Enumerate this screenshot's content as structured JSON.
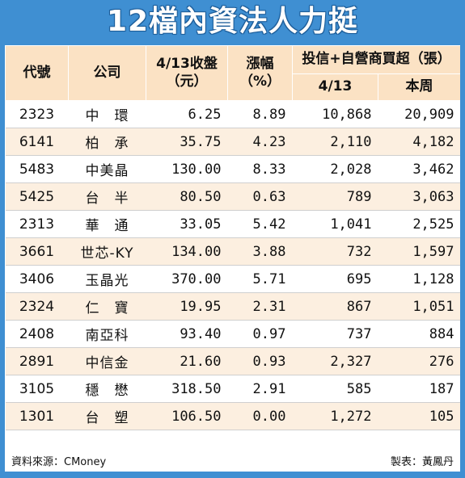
{
  "title": "12檔內資法人力挺",
  "headers": {
    "code": "代號",
    "company": "公司",
    "close_line1": "4/13收盤",
    "close_line2": "（元）",
    "change_line1": "漲幅",
    "change_line2": "（%）",
    "net_buy": "投信+自營商買超（張）",
    "net_buy_day": "4/13",
    "net_buy_week": "本周"
  },
  "rows": [
    {
      "code": "2323",
      "name": "中　環",
      "close": "6.25",
      "change": "8.89",
      "day": "10,868",
      "week": "20,909"
    },
    {
      "code": "6141",
      "name": "柏　承",
      "close": "35.75",
      "change": "4.23",
      "day": "2,110",
      "week": "4,182"
    },
    {
      "code": "5483",
      "name": "中美晶",
      "close": "130.00",
      "change": "8.33",
      "day": "2,028",
      "week": "3,462"
    },
    {
      "code": "5425",
      "name": "台　半",
      "close": "80.50",
      "change": "0.63",
      "day": "789",
      "week": "3,063"
    },
    {
      "code": "2313",
      "name": "華　通",
      "close": "33.05",
      "change": "5.42",
      "day": "1,041",
      "week": "2,525"
    },
    {
      "code": "3661",
      "name": "世芯-KY",
      "close": "134.00",
      "change": "3.88",
      "day": "732",
      "week": "1,597"
    },
    {
      "code": "3406",
      "name": "玉晶光",
      "close": "370.00",
      "change": "5.71",
      "day": "695",
      "week": "1,128"
    },
    {
      "code": "2324",
      "name": "仁　寶",
      "close": "19.95",
      "change": "2.31",
      "day": "867",
      "week": "1,051"
    },
    {
      "code": "2408",
      "name": "南亞科",
      "close": "93.40",
      "change": "0.97",
      "day": "737",
      "week": "884"
    },
    {
      "code": "2891",
      "name": "中信金",
      "close": "21.60",
      "change": "0.93",
      "day": "2,327",
      "week": "276"
    },
    {
      "code": "3105",
      "name": "穩　懋",
      "close": "318.50",
      "change": "2.91",
      "day": "585",
      "week": "187"
    },
    {
      "code": "1301",
      "name": "台　塑",
      "close": "106.50",
      "change": "0.00",
      "day": "1,272",
      "week": "105"
    }
  ],
  "footer": {
    "source": "資料來源：CMoney",
    "maker": "製表：黃鳳丹"
  },
  "colors": {
    "frame": "#3f8fd2",
    "header_bg": "#fbe2c4",
    "stripe_bg": "#fcefe0"
  }
}
